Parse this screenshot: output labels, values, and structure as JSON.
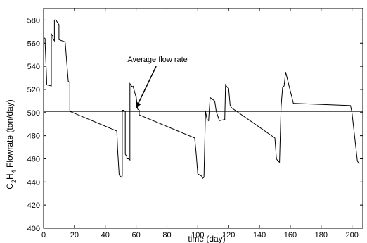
{
  "chart_data": {
    "type": "line",
    "title": "",
    "xlabel": "time (day)",
    "ylabel": "C2H4 Flowrate (ton/day)",
    "ylabel_parts": {
      "c": "C",
      "sub2": "2",
      "h": "H",
      "sub4": "4",
      "rest": " Flowrate (ton/day)"
    },
    "xlim": [
      0,
      207
    ],
    "ylim": [
      400,
      590
    ],
    "xticks": [
      0,
      20,
      40,
      60,
      80,
      100,
      120,
      140,
      160,
      180,
      200
    ],
    "yticks": [
      400,
      420,
      440,
      460,
      480,
      500,
      520,
      540,
      560,
      580
    ],
    "grid": false,
    "legend": "none",
    "colors": {
      "line": "#000000",
      "average": "#000000"
    },
    "series": [
      {
        "x": [
          0,
          0,
          1,
          1,
          2,
          2,
          5,
          5,
          6,
          6,
          7,
          7,
          8,
          8,
          9,
          9,
          10,
          10,
          14,
          14,
          16,
          16,
          17,
          17,
          47.5,
          47.5,
          48,
          48,
          49,
          49,
          50.5,
          50.5,
          51,
          51,
          52,
          52,
          53,
          53,
          54,
          54,
          55,
          55,
          56,
          56,
          57,
          57,
          58,
          58,
          60,
          60,
          61,
          61,
          62,
          62,
          98,
          98,
          99,
          99,
          100,
          100,
          102.5,
          102.5,
          103,
          103,
          104,
          104,
          105,
          105,
          106,
          106,
          107,
          107,
          108,
          108,
          110,
          110,
          111,
          111,
          112,
          112,
          113,
          113,
          114,
          114,
          117.5,
          117.5,
          118,
          118,
          119,
          119,
          120,
          120,
          121,
          121,
          122,
          122,
          150,
          150,
          151,
          151,
          152,
          152,
          153,
          153,
          154,
          154,
          155,
          155,
          156,
          156,
          157,
          157,
          162,
          162,
          163,
          163,
          199,
          199,
          200,
          200,
          203.5,
          203.5,
          204,
          204,
          205,
          205
        ],
        "y": [
          560,
          565,
          564,
          560,
          528,
          524,
          523,
          568,
          566,
          564,
          562,
          580,
          580,
          580,
          578,
          578,
          576,
          563,
          561,
          561,
          527,
          527,
          526,
          501,
          484,
          484,
          468,
          468,
          446,
          446,
          444,
          444,
          445,
          502,
          502,
          502,
          501,
          464,
          462,
          460,
          460,
          460,
          459,
          525,
          523,
          523,
          522,
          523,
          513,
          514,
          503,
          503,
          502,
          498,
          478,
          478,
          464,
          464,
          447,
          447,
          445,
          445,
          443,
          443,
          444,
          444,
          501,
          501,
          494,
          494,
          493,
          493,
          513,
          513,
          511,
          511,
          510,
          510,
          501,
          501,
          497,
          497,
          493,
          493,
          494,
          494,
          524,
          524,
          522,
          522,
          521,
          521,
          506,
          506,
          504,
          504,
          478,
          478,
          460,
          460,
          458,
          458,
          457,
          457,
          505,
          505,
          522,
          522,
          523,
          523,
          535,
          535,
          508,
          508,
          508,
          508,
          506,
          506,
          500,
          500,
          458,
          458,
          457,
          457,
          456,
          456
        ]
      }
    ],
    "average_line": {
      "y": 501
    },
    "annotations": [
      {
        "text": "Average flow rate",
        "arrow_from": [
          73,
          540
        ],
        "arrow_to": [
          60,
          504
        ]
      }
    ]
  }
}
